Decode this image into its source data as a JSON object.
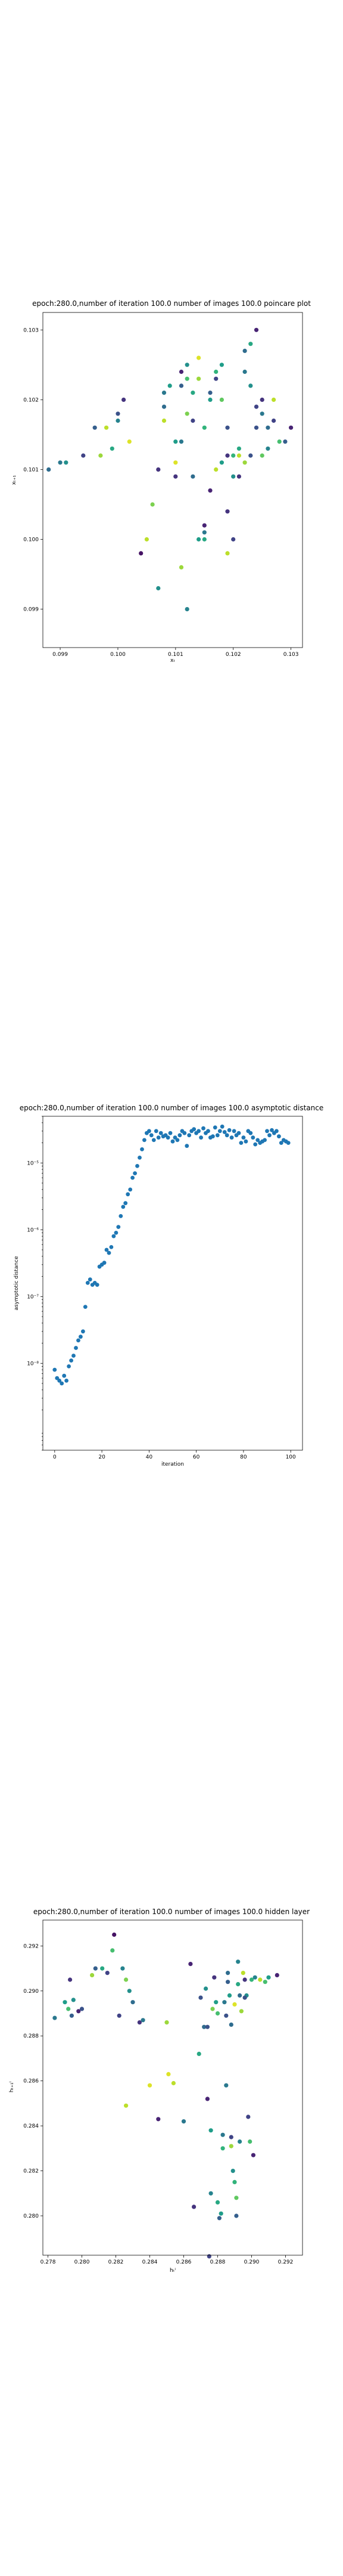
{
  "chart_data": [
    {
      "type": "scatter",
      "title": "epoch:280.0,number of iteration 100.0 number of images 100.0 poincare plot",
      "xlabel": "xₜ",
      "ylabel": "xₜ₊₁",
      "xlim": [
        0.0987,
        0.1032
      ],
      "ylim": [
        0.09845,
        0.10325
      ],
      "x_ticks": [
        "0.099",
        "0.100",
        "0.101",
        "0.102",
        "0.103"
      ],
      "x_tick_values": [
        0.099,
        0.1,
        0.101,
        0.102,
        0.103
      ],
      "y_ticks": [
        "0.099",
        "0.100",
        "0.101",
        "0.102",
        "0.103"
      ],
      "y_tick_values": [
        0.099,
        0.1,
        0.101,
        0.102,
        0.103
      ],
      "colormap": "viridis",
      "points": [
        [
          0.0988,
          0.101,
          0.35
        ],
        [
          0.099,
          0.1011,
          0.4
        ],
        [
          0.0991,
          0.1011,
          0.5
        ],
        [
          0.0994,
          0.1012,
          0.2
        ],
        [
          0.0997,
          0.1012,
          0.85
        ],
        [
          0.0996,
          0.1016,
          0.3
        ],
        [
          0.0998,
          0.1016,
          0.9
        ],
        [
          0.0999,
          0.1013,
          0.6
        ],
        [
          0.1,
          0.1017,
          0.45
        ],
        [
          0.1,
          0.1018,
          0.25
        ],
        [
          0.1001,
          0.102,
          0.15
        ],
        [
          0.1002,
          0.1014,
          0.95
        ],
        [
          0.1004,
          0.0998,
          0.05
        ],
        [
          0.1005,
          0.1,
          0.9
        ],
        [
          0.1006,
          0.1005,
          0.8
        ],
        [
          0.1007,
          0.0993,
          0.5
        ],
        [
          0.1007,
          0.101,
          0.15
        ],
        [
          0.1008,
          0.1021,
          0.4
        ],
        [
          0.1008,
          0.1017,
          0.9
        ],
        [
          0.1009,
          0.1022,
          0.55
        ],
        [
          0.101,
          0.1011,
          0.95
        ],
        [
          0.101,
          0.1009,
          0.15
        ],
        [
          0.1011,
          0.1014,
          0.4
        ],
        [
          0.1011,
          0.1022,
          0.3
        ],
        [
          0.1011,
          0.1024,
          0.1
        ],
        [
          0.1012,
          0.1023,
          0.7
        ],
        [
          0.1012,
          0.1018,
          0.8
        ],
        [
          0.1012,
          0.1025,
          0.5
        ],
        [
          0.1013,
          0.1017,
          0.2
        ],
        [
          0.1013,
          0.1021,
          0.6
        ],
        [
          0.1014,
          0.1026,
          0.95
        ],
        [
          0.1014,
          0.1023,
          0.85
        ],
        [
          0.1015,
          0.1001,
          0.4
        ],
        [
          0.1015,
          0.1,
          0.6
        ],
        [
          0.1015,
          0.1002,
          0.1
        ],
        [
          0.1016,
          0.102,
          0.55
        ],
        [
          0.1016,
          0.1021,
          0.3
        ],
        [
          0.1017,
          0.1023,
          0.2
        ],
        [
          0.1017,
          0.1024,
          0.65
        ],
        [
          0.1018,
          0.1025,
          0.55
        ],
        [
          0.1018,
          0.102,
          0.75
        ],
        [
          0.1019,
          0.1012,
          0.15
        ],
        [
          0.1019,
          0.1016,
          0.25
        ],
        [
          0.102,
          0.1,
          0.2
        ],
        [
          0.102,
          0.1009,
          0.5
        ],
        [
          0.1021,
          0.1013,
          0.6
        ],
        [
          0.1021,
          0.1012,
          0.9
        ],
        [
          0.1022,
          0.1024,
          0.4
        ],
        [
          0.1022,
          0.1027,
          0.35
        ],
        [
          0.1023,
          0.1028,
          0.6
        ],
        [
          0.1023,
          0.1012,
          0.25
        ],
        [
          0.1024,
          0.103,
          0.1
        ],
        [
          0.1024,
          0.1019,
          0.2
        ],
        [
          0.1025,
          0.102,
          0.15
        ],
        [
          0.1025,
          0.1012,
          0.75
        ],
        [
          0.1026,
          0.1013,
          0.45
        ],
        [
          0.1027,
          0.102,
          0.9
        ],
        [
          0.1028,
          0.1014,
          0.7
        ],
        [
          0.1029,
          0.1014,
          0.3
        ],
        [
          0.103,
          0.1016,
          0.1
        ],
        [
          0.1017,
          0.101,
          0.9
        ],
        [
          0.1018,
          0.1011,
          0.55
        ],
        [
          0.1016,
          0.1007,
          0.1
        ],
        [
          0.1013,
          0.1009,
          0.35
        ],
        [
          0.1019,
          0.1004,
          0.15
        ],
        [
          0.102,
          0.1012,
          0.65
        ],
        [
          0.1022,
          0.1011,
          0.85
        ],
        [
          0.1023,
          0.1022,
          0.5
        ],
        [
          0.101,
          0.1014,
          0.55
        ],
        [
          0.1008,
          0.1019,
          0.35
        ],
        [
          0.1011,
          0.0996,
          0.85
        ],
        [
          0.1012,
          0.099,
          0.45
        ],
        [
          0.1014,
          0.1,
          0.55
        ],
        [
          0.1019,
          0.0998,
          0.9
        ],
        [
          0.1021,
          0.1009,
          0.15
        ],
        [
          0.1024,
          0.1016,
          0.25
        ],
        [
          0.1025,
          0.1018,
          0.4
        ],
        [
          0.1026,
          0.1016,
          0.35
        ],
        [
          0.1027,
          0.1017,
          0.2
        ],
        [
          0.1015,
          0.1016,
          0.65
        ]
      ]
    },
    {
      "type": "scatter",
      "title": "epoch:280.0,number of iteration 100.0  number of images 100.0 asymptotic distance",
      "xlabel": "iteration",
      "ylabel": "asymptotic distance",
      "yscale": "log",
      "xlim": [
        -5,
        105
      ],
      "ylim": [
        5e-10,
        5e-05
      ],
      "x_ticks": [
        "0",
        "20",
        "40",
        "60",
        "80",
        "100"
      ],
      "x_tick_values": [
        0,
        20,
        40,
        60,
        80,
        100
      ],
      "y_ticks": [
        "10⁻⁸",
        "10⁻⁷",
        "10⁻⁶",
        "10⁻⁵"
      ],
      "y_tick_values": [
        1e-08,
        1e-07,
        1e-06,
        1e-05
      ],
      "color": "#1f77b4",
      "x": [
        0,
        1,
        2,
        3,
        4,
        5,
        6,
        7,
        8,
        9,
        10,
        11,
        12,
        13,
        14,
        15,
        16,
        17,
        18,
        19,
        20,
        21,
        22,
        23,
        24,
        25,
        26,
        27,
        28,
        29,
        30,
        31,
        32,
        33,
        34,
        35,
        36,
        37,
        38,
        39,
        40,
        41,
        42,
        43,
        44,
        45,
        46,
        47,
        48,
        49,
        50,
        51,
        52,
        53,
        54,
        55,
        56,
        57,
        58,
        59,
        60,
        61,
        62,
        63,
        64,
        65,
        66,
        67,
        68,
        69,
        70,
        71,
        72,
        73,
        74,
        75,
        76,
        77,
        78,
        79,
        80,
        81,
        82,
        83,
        84,
        85,
        86,
        87,
        88,
        89,
        90,
        91,
        92,
        93,
        94,
        95,
        96,
        97,
        98,
        99
      ],
      "y": [
        8e-09,
        6e-09,
        5.5e-09,
        5e-09,
        6.5e-09,
        5.5e-09,
        9e-09,
        1.1e-08,
        1.3e-08,
        1.7e-08,
        2.2e-08,
        2.5e-08,
        3e-08,
        7e-08,
        1.6e-07,
        1.8e-07,
        1.5e-07,
        1.6e-07,
        1.5e-07,
        2.8e-07,
        3e-07,
        3.2e-07,
        5e-07,
        4.5e-07,
        5.5e-07,
        8e-07,
        9e-07,
        1.1e-06,
        1.6e-06,
        2.2e-06,
        2.5e-06,
        3.4e-06,
        4e-06,
        6e-06,
        7e-06,
        9e-06,
        1.2e-05,
        1.6e-05,
        2.2e-05,
        2.8e-05,
        3e-05,
        2.6e-05,
        2.2e-05,
        3e-05,
        2.4e-05,
        2.8e-05,
        2.5e-05,
        2.6e-05,
        2.4e-05,
        2.8e-05,
        2.1e-05,
        2.4e-05,
        2.2e-05,
        2.6e-05,
        3e-05,
        2.8e-05,
        1.8e-05,
        2.6e-05,
        3e-05,
        3.2e-05,
        2.8e-05,
        3e-05,
        2.4e-05,
        3.3e-05,
        2.8e-05,
        3e-05,
        2.4e-05,
        2.5e-05,
        3.4e-05,
        2.6e-05,
        3e-05,
        3.5e-05,
        2.9e-05,
        2.6e-05,
        3.1e-05,
        2.4e-05,
        3e-05,
        2.6e-05,
        2.8e-05,
        2e-05,
        2.4e-05,
        2.1e-05,
        3e-05,
        2.8e-05,
        2.4e-05,
        1.9e-05,
        2.2e-05,
        2e-05,
        2.1e-05,
        2.2e-05,
        3e-05,
        2.6e-05,
        3.1e-05,
        2.8e-05,
        3e-05,
        2.5e-05,
        2e-05,
        2.2e-05,
        2.1e-05,
        2e-05
      ]
    },
    {
      "type": "scatter",
      "title": "epoch:280.0,number of iteration 100.0  number of images 100.0 hidden layer",
      "xlabel": "hₜⁱ",
      "ylabel": "hₜ₊₁ⁱ",
      "xlim": [
        0.2777,
        0.293
      ],
      "ylim": [
        0.27825,
        0.29315
      ],
      "x_ticks": [
        "0.278",
        "0.280",
        "0.282",
        "0.284",
        "0.286",
        "0.288",
        "0.290",
        "0.292"
      ],
      "x_tick_values": [
        0.278,
        0.28,
        0.282,
        0.284,
        0.286,
        0.288,
        0.29,
        0.292
      ],
      "y_ticks": [
        "0.280",
        "0.282",
        "0.284",
        "0.286",
        "0.288",
        "0.290",
        "0.292"
      ],
      "y_tick_values": [
        0.28,
        0.282,
        0.284,
        0.286,
        0.288,
        0.29,
        0.292
      ],
      "colormap": "viridis",
      "points": [
        [
          0.2784,
          0.2888,
          0.4
        ],
        [
          0.279,
          0.2895,
          0.55
        ],
        [
          0.2792,
          0.2892,
          0.7
        ],
        [
          0.2793,
          0.2905,
          0.15
        ],
        [
          0.2794,
          0.2889,
          0.3
        ],
        [
          0.2795,
          0.2896,
          0.5
        ],
        [
          0.2798,
          0.2891,
          0.1
        ],
        [
          0.28,
          0.2892,
          0.25
        ],
        [
          0.2806,
          0.2907,
          0.85
        ],
        [
          0.2808,
          0.291,
          0.3
        ],
        [
          0.2812,
          0.291,
          0.6
        ],
        [
          0.2815,
          0.2908,
          0.2
        ],
        [
          0.2818,
          0.2918,
          0.7
        ],
        [
          0.2819,
          0.2925,
          0.05
        ],
        [
          0.2822,
          0.2889,
          0.2
        ],
        [
          0.2824,
          0.291,
          0.45
        ],
        [
          0.2826,
          0.2905,
          0.8
        ],
        [
          0.2826,
          0.2849,
          0.9
        ],
        [
          0.2828,
          0.29,
          0.5
        ],
        [
          0.283,
          0.2895,
          0.35
        ],
        [
          0.2834,
          0.2886,
          0.15
        ],
        [
          0.2836,
          0.2887,
          0.4
        ],
        [
          0.284,
          0.2858,
          0.95
        ],
        [
          0.2845,
          0.2843,
          0.1
        ],
        [
          0.285,
          0.2886,
          0.85
        ],
        [
          0.2851,
          0.2863,
          0.95
        ],
        [
          0.2854,
          0.2859,
          0.9
        ],
        [
          0.286,
          0.2842,
          0.4
        ],
        [
          0.2864,
          0.2912,
          0.1
        ],
        [
          0.2866,
          0.2804,
          0.15
        ],
        [
          0.2869,
          0.2872,
          0.6
        ],
        [
          0.287,
          0.2897,
          0.25
        ],
        [
          0.2872,
          0.2884,
          0.35
        ],
        [
          0.2873,
          0.2901,
          0.5
        ],
        [
          0.2874,
          0.2852,
          0.1
        ],
        [
          0.2875,
          0.2782,
          0.2
        ],
        [
          0.2876,
          0.281,
          0.45
        ],
        [
          0.2877,
          0.2892,
          0.8
        ],
        [
          0.2878,
          0.2906,
          0.15
        ],
        [
          0.2879,
          0.2895,
          0.55
        ],
        [
          0.288,
          0.289,
          0.7
        ],
        [
          0.2881,
          0.2799,
          0.3
        ],
        [
          0.2882,
          0.2801,
          0.55
        ],
        [
          0.2883,
          0.2836,
          0.4
        ],
        [
          0.2883,
          0.283,
          0.65
        ],
        [
          0.2884,
          0.2895,
          0.4
        ],
        [
          0.2885,
          0.2889,
          0.25
        ],
        [
          0.2886,
          0.2904,
          0.3
        ],
        [
          0.2887,
          0.2898,
          0.55
        ],
        [
          0.2888,
          0.2831,
          0.85
        ],
        [
          0.2888,
          0.2835,
          0.2
        ],
        [
          0.2889,
          0.282,
          0.5
        ],
        [
          0.289,
          0.2815,
          0.65
        ],
        [
          0.2891,
          0.28,
          0.3
        ],
        [
          0.2891,
          0.2808,
          0.75
        ],
        [
          0.2892,
          0.2903,
          0.6
        ],
        [
          0.2893,
          0.2898,
          0.35
        ],
        [
          0.2894,
          0.2891,
          0.85
        ],
        [
          0.2895,
          0.2908,
          0.9
        ],
        [
          0.2896,
          0.2905,
          0.15
        ],
        [
          0.2897,
          0.2898,
          0.5
        ],
        [
          0.2898,
          0.2844,
          0.2
        ],
        [
          0.2899,
          0.2833,
          0.7
        ],
        [
          0.29,
          0.2905,
          0.65
        ],
        [
          0.2901,
          0.2827,
          0.1
        ],
        [
          0.2902,
          0.2906,
          0.45
        ],
        [
          0.2905,
          0.2905,
          0.9
        ],
        [
          0.2908,
          0.2904,
          0.7
        ],
        [
          0.291,
          0.2906,
          0.55
        ],
        [
          0.2915,
          0.2907,
          0.1
        ],
        [
          0.2885,
          0.2858,
          0.4
        ],
        [
          0.2876,
          0.2838,
          0.55
        ],
        [
          0.2888,
          0.2885,
          0.35
        ],
        [
          0.2874,
          0.2884,
          0.25
        ],
        [
          0.2892,
          0.2913,
          0.45
        ],
        [
          0.289,
          0.2894,
          0.95
        ],
        [
          0.2886,
          0.2908,
          0.35
        ],
        [
          0.2896,
          0.2897,
          0.25
        ],
        [
          0.2893,
          0.2833,
          0.45
        ],
        [
          0.288,
          0.2806,
          0.6
        ]
      ]
    }
  ]
}
